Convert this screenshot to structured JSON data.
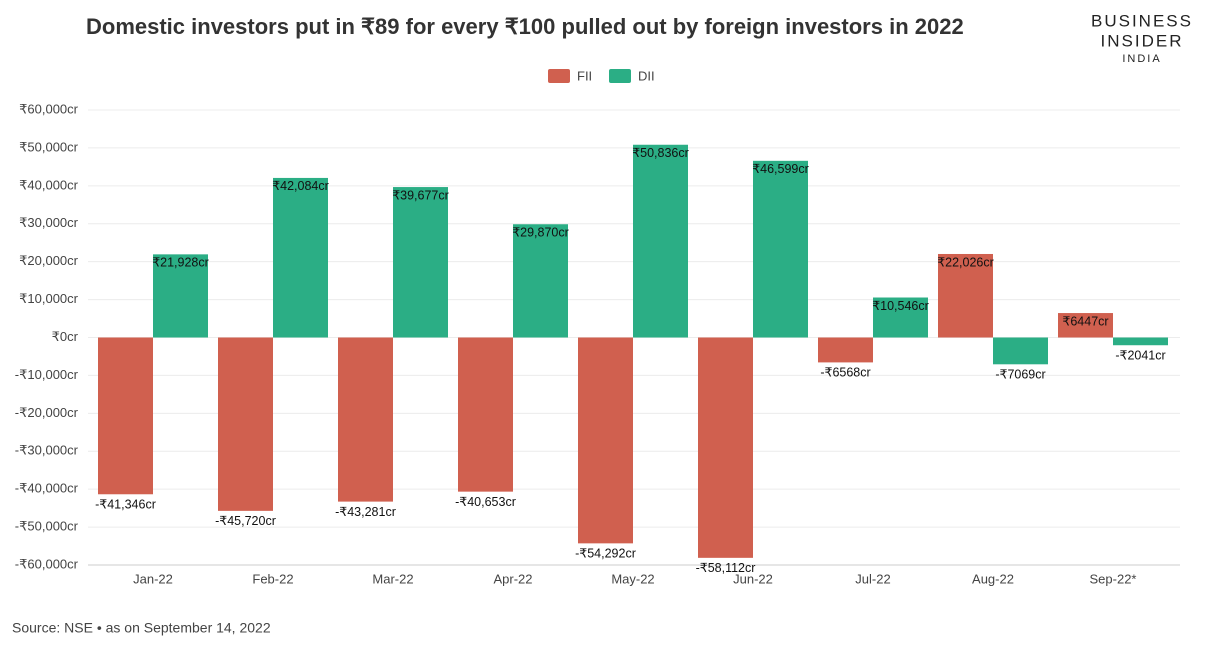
{
  "chart_data": {
    "type": "bar",
    "title": "Domestic investors put in ₹89 for every ₹100 pulled out by foreign investors in 2022",
    "brand": {
      "line1": "BUSINESS",
      "line2": "INSIDER",
      "line3": "INDIA"
    },
    "source": "Source: NSE • as on September 14, 2022",
    "categories": [
      "Jan-22",
      "Feb-22",
      "Mar-22",
      "Apr-22",
      "May-22",
      "Jun-22",
      "Jul-22",
      "Aug-22",
      "Sep-22*"
    ],
    "series": [
      {
        "name": "FII",
        "color": "#d0604f",
        "values": [
          -41346,
          -45720,
          -43281,
          -40653,
          -54292,
          -58112,
          -6568,
          22026,
          6447
        ],
        "value_labels": [
          "-₹41,346cr",
          "-₹45,720cr",
          "-₹43,281cr",
          "-₹40,653cr",
          "-₹54,292cr",
          "-₹58,112cr",
          "-₹6568cr",
          "₹22,026cr",
          "₹6447cr"
        ]
      },
      {
        "name": "DII",
        "color": "#2bae85",
        "values": [
          21928,
          42084,
          39677,
          29870,
          50836,
          46599,
          10546,
          -7069,
          -2041
        ],
        "value_labels": [
          "₹21,928cr",
          "₹42,084cr",
          "₹39,677cr",
          "₹29,870cr",
          "₹50,836cr",
          "₹46,599cr",
          "₹10,546cr",
          "-₹7069cr",
          "-₹2041cr"
        ]
      }
    ],
    "ylim": [
      -60000,
      60000
    ],
    "yticks": [
      {
        "value": 60000,
        "label": "₹60,000cr"
      },
      {
        "value": 50000,
        "label": "₹50,000cr"
      },
      {
        "value": 40000,
        "label": "₹40,000cr"
      },
      {
        "value": 30000,
        "label": "₹30,000cr"
      },
      {
        "value": 20000,
        "label": "₹20,000cr"
      },
      {
        "value": 10000,
        "label": "₹10,000cr"
      },
      {
        "value": 0,
        "label": "₹0cr"
      },
      {
        "value": -10000,
        "label": "-₹10,000cr"
      },
      {
        "value": -20000,
        "label": "-₹20,000cr"
      },
      {
        "value": -30000,
        "label": "-₹30,000cr"
      },
      {
        "value": -40000,
        "label": "-₹40,000cr"
      },
      {
        "value": -50000,
        "label": "-₹50,000cr"
      },
      {
        "value": -60000,
        "label": "-₹60,000cr"
      }
    ],
    "grid": true
  }
}
